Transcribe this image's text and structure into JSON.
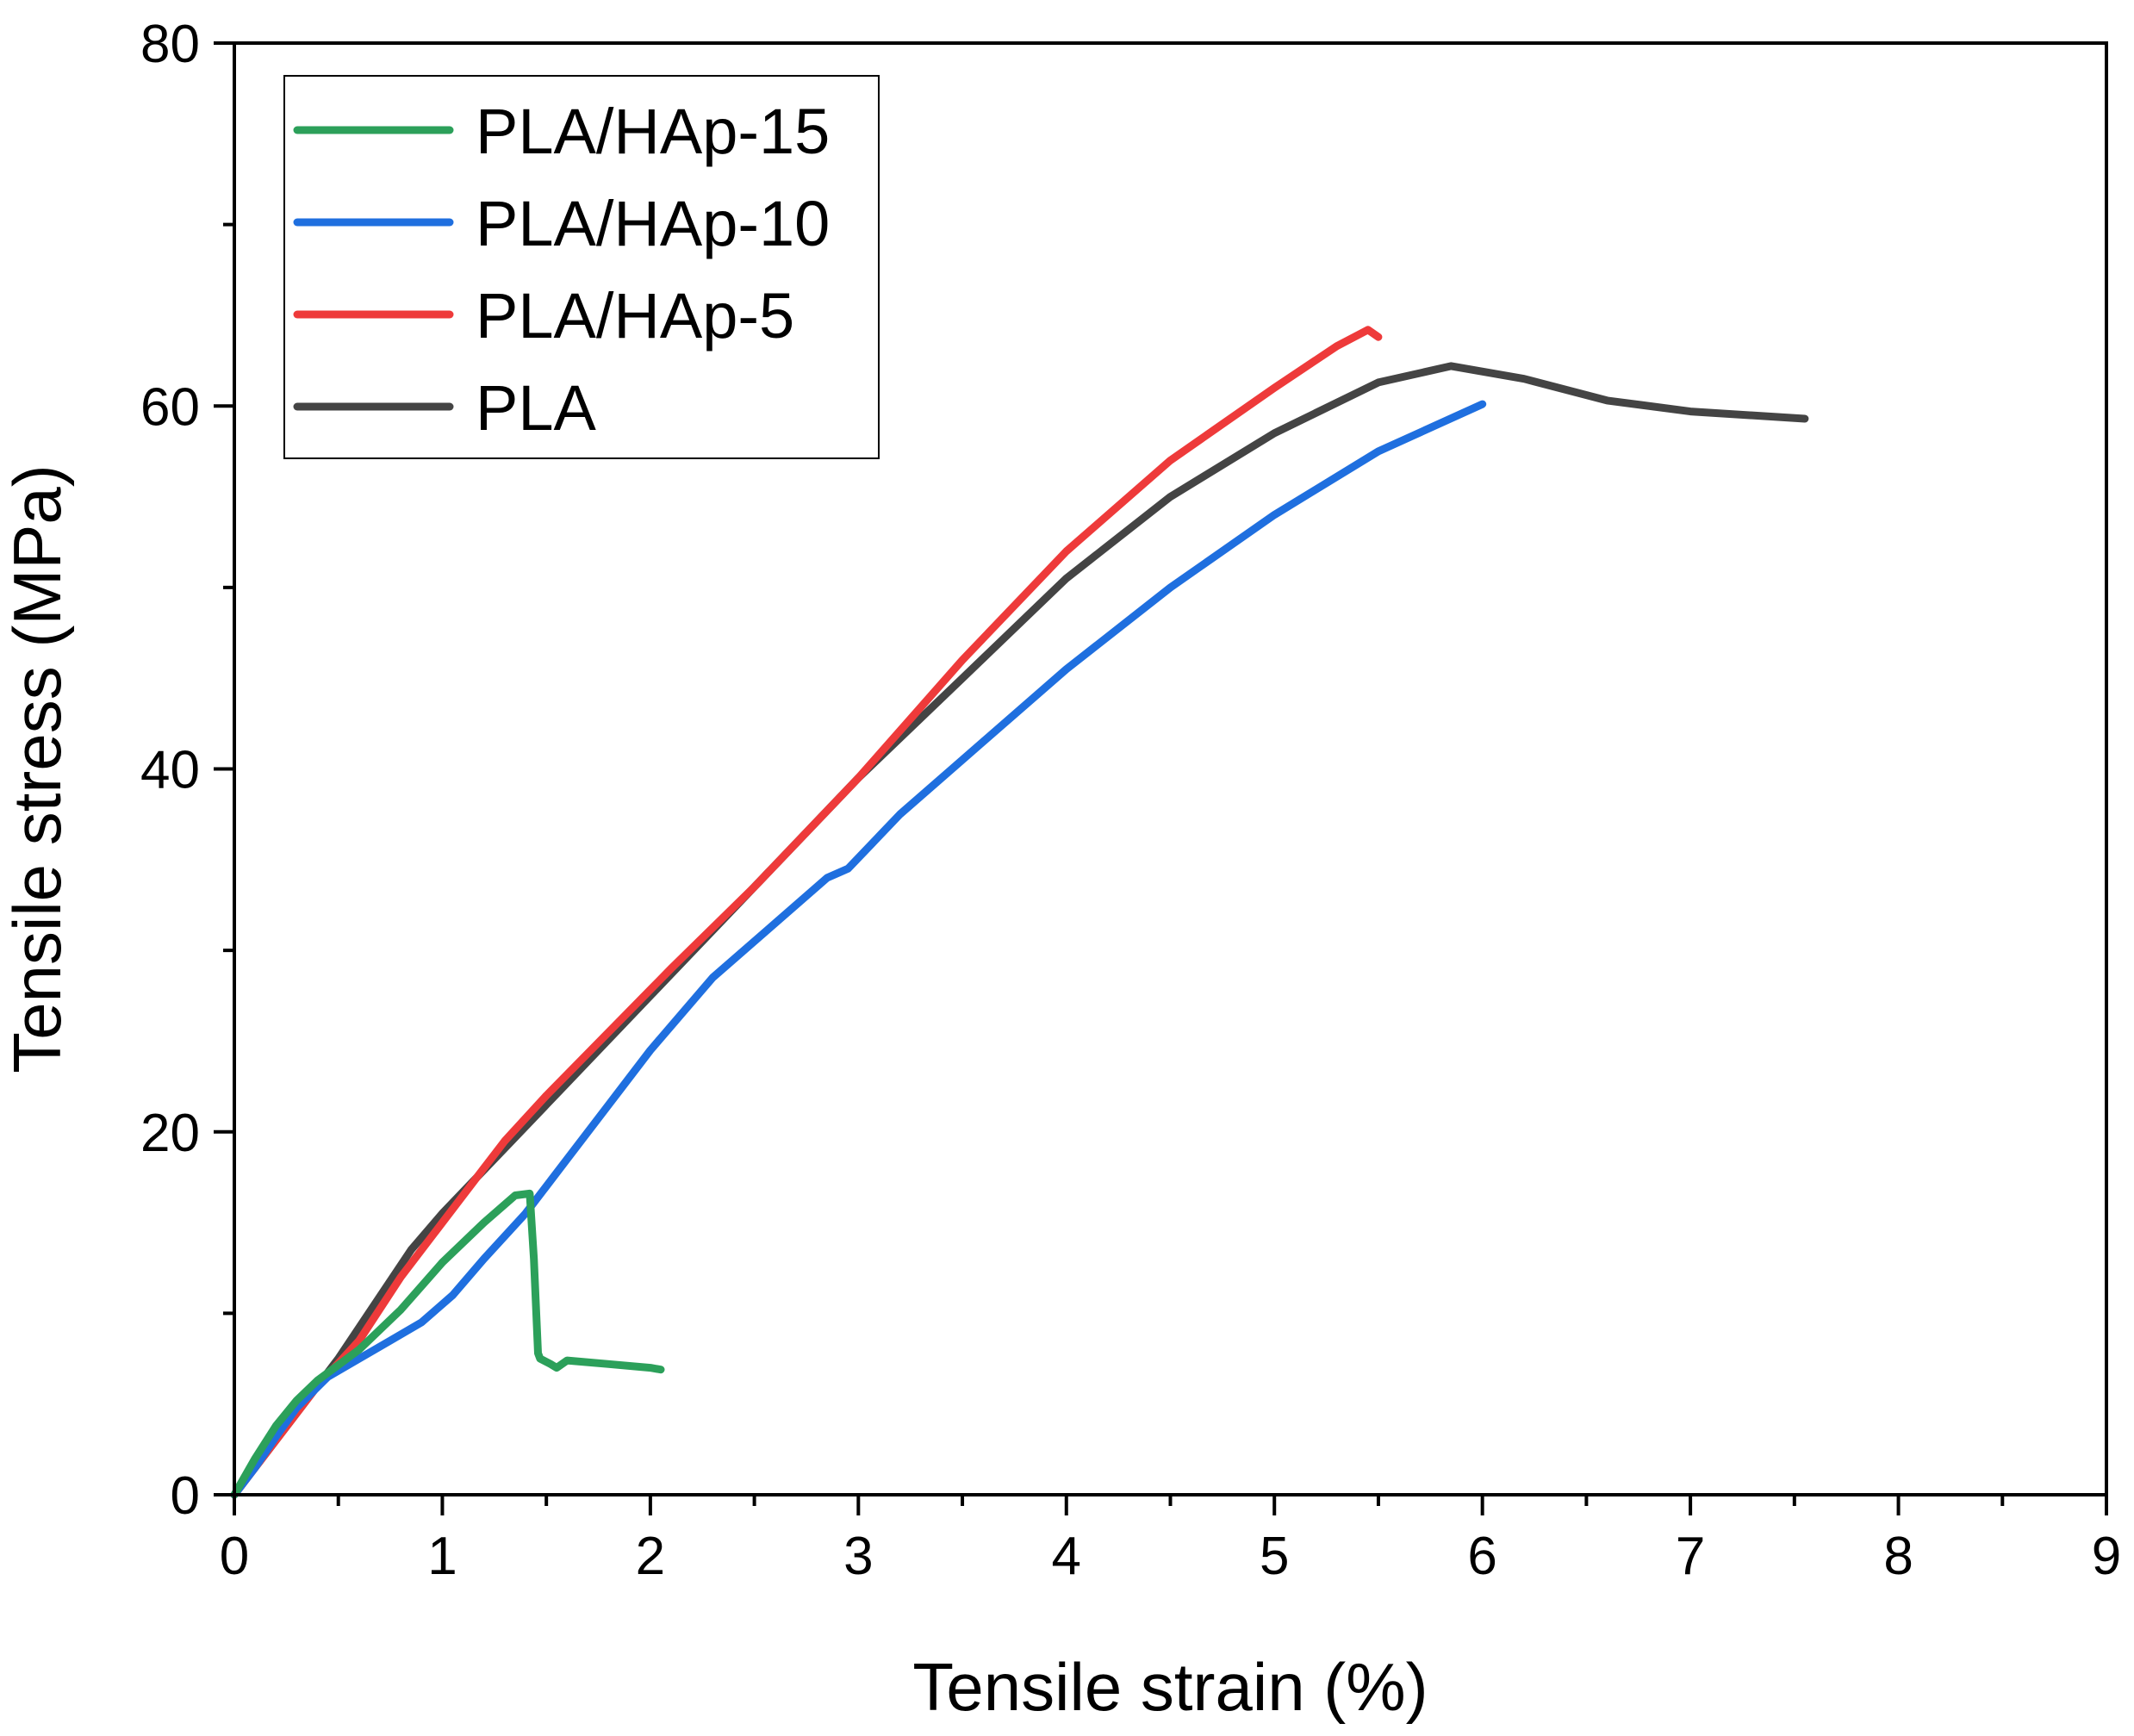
{
  "chart_data": {
    "type": "line",
    "title": "",
    "xlabel": "Tensile strain (%)",
    "ylabel": "Tensile stress (MPa)",
    "xlim": [
      0,
      9
    ],
    "ylim": [
      0,
      80
    ],
    "x_ticks": [
      0,
      1,
      2,
      3,
      4,
      5,
      6,
      7,
      8,
      9
    ],
    "y_ticks": [
      0,
      20,
      40,
      60,
      80
    ],
    "grid": false,
    "legend_position": "top-left",
    "series": [
      {
        "name": "PLA/HAp-15",
        "color": "#2ca05a",
        "x": [
          0,
          0.1,
          0.2,
          0.3,
          0.4,
          0.6,
          0.8,
          1.0,
          1.2,
          1.35,
          1.42,
          1.44,
          1.46,
          1.47,
          1.52,
          1.55,
          1.6,
          1.8,
          2.0,
          2.05
        ],
        "y": [
          0,
          2.0,
          3.8,
          5.2,
          6.3,
          8.0,
          10.2,
          12.8,
          15.0,
          16.5,
          16.6,
          13.0,
          7.8,
          7.5,
          7.2,
          7.0,
          7.4,
          7.2,
          7.0,
          6.9
        ]
      },
      {
        "name": "PLA/HAp-10",
        "color": "#1f6fdf",
        "x": [
          0,
          0.1,
          0.2,
          0.3,
          0.45,
          0.6,
          0.75,
          0.9,
          1.05,
          1.2,
          1.4,
          1.6,
          1.8,
          2.0,
          2.3,
          2.6,
          2.85,
          2.95,
          3.2,
          3.6,
          4.0,
          4.5,
          5.0,
          5.5,
          6.0
        ],
        "y": [
          0,
          1.5,
          3.2,
          4.8,
          6.5,
          7.5,
          8.5,
          9.5,
          11.0,
          13.0,
          15.5,
          18.5,
          21.5,
          24.5,
          28.5,
          31.5,
          34.0,
          34.5,
          37.5,
          41.5,
          45.5,
          50.0,
          54.0,
          57.5,
          60.1
        ]
      },
      {
        "name": "PLA/HAp-5",
        "color": "#ee3a3a",
        "x": [
          0,
          0.2,
          0.4,
          0.6,
          0.8,
          1.0,
          1.2,
          1.3,
          1.5,
          1.8,
          2.1,
          2.5,
          3.0,
          3.5,
          4.0,
          4.5,
          5.0,
          5.3,
          5.45,
          5.5
        ],
        "y": [
          0,
          3.0,
          6.0,
          8.5,
          12.0,
          15.0,
          18.0,
          19.5,
          22.0,
          25.5,
          29.0,
          33.5,
          39.5,
          46.0,
          52.0,
          57.0,
          61.0,
          63.3,
          64.2,
          63.8
        ]
      },
      {
        "name": "PLA",
        "color": "#444444",
        "x": [
          0,
          0.2,
          0.5,
          0.85,
          1.0,
          1.5,
          2.0,
          2.5,
          3.0,
          3.5,
          4.0,
          4.5,
          5.0,
          5.5,
          5.85,
          6.2,
          6.6,
          7.0,
          7.55
        ],
        "y": [
          0,
          3.0,
          7.5,
          13.5,
          15.5,
          21.5,
          27.5,
          33.5,
          39.5,
          45.0,
          50.5,
          55.0,
          58.5,
          61.3,
          62.2,
          61.5,
          60.3,
          59.7,
          59.3
        ]
      }
    ]
  }
}
